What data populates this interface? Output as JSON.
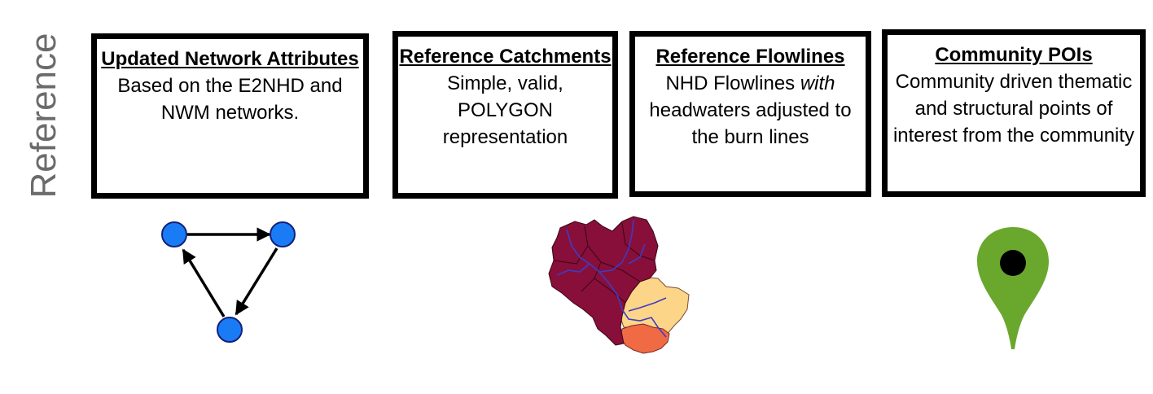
{
  "side_label": "Reference",
  "cards": [
    {
      "title": "Updated Network Attributes",
      "body": "Based on the E2NHD and NWM networks."
    },
    {
      "title": "Reference Catchments",
      "body": "Simple, valid, POLYGON representation"
    },
    {
      "title": "Reference Flowlines",
      "body_pre": "NHD Flowlines ",
      "body_em": "with",
      "body_post": " headwaters adjusted to the burn lines"
    },
    {
      "title": "Community POIs",
      "body": "Community driven thematic and structural points of interest from the community"
    }
  ],
  "icons": {
    "network": "network-graph-icon",
    "catchments": "catchment-map-icon",
    "poi": "map-pin-icon"
  },
  "colors": {
    "node_fill": "#1a7cf5",
    "node_stroke": "#12207a",
    "catchment_dark": "#870f3a",
    "catchment_light": "#fcd588",
    "catchment_orange": "#f06a44",
    "stream": "#3e3cc4",
    "pin_green": "#69a82d",
    "pin_dot": "#000000"
  }
}
